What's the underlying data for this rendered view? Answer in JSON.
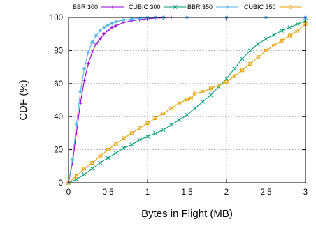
{
  "chart_data": {
    "type": "line",
    "xlabel": "Bytes in Flight (MB)",
    "ylabel": "CDF (%)",
    "xlim": [
      0,
      3
    ],
    "ylim": [
      0,
      100
    ],
    "x_ticks": [
      "0",
      "0.5",
      "1",
      "1.5",
      "2",
      "2.5",
      "3"
    ],
    "y_ticks": [
      "0",
      "20",
      "40",
      "60",
      "80",
      "100"
    ],
    "grid": true,
    "legend_position": "top",
    "series": [
      {
        "name": "BBR 300",
        "color": "#9400d3",
        "marker": "plus",
        "x": [
          0.0,
          0.05,
          0.1,
          0.15,
          0.2,
          0.25,
          0.3,
          0.35,
          0.4,
          0.45,
          0.5,
          0.55,
          0.6,
          0.65,
          0.7,
          0.8,
          0.9,
          1.0,
          1.1,
          1.2,
          1.3,
          1.5,
          2.0,
          2.5,
          3.0
        ],
        "y": [
          0,
          12,
          30,
          48,
          62,
          72,
          79,
          84,
          87,
          90,
          92,
          94,
          95,
          96,
          97,
          98,
          98.7,
          99.2,
          99.6,
          99.8,
          100,
          100,
          100,
          100,
          100
        ]
      },
      {
        "name": "CUBIC 300",
        "color": "#009e73",
        "marker": "x",
        "x": [
          0.0,
          0.1,
          0.2,
          0.3,
          0.4,
          0.5,
          0.6,
          0.7,
          0.8,
          0.9,
          1.0,
          1.1,
          1.2,
          1.3,
          1.4,
          1.5,
          1.6,
          1.7,
          1.8,
          1.9,
          2.0,
          2.1,
          2.2,
          2.3,
          2.4,
          2.5,
          2.6,
          2.7,
          2.8,
          2.9,
          3.0
        ],
        "y": [
          0,
          2,
          5,
          8.5,
          12,
          15,
          18,
          21,
          23,
          26,
          28,
          30,
          32,
          35,
          38,
          41,
          45,
          49,
          53,
          58,
          63,
          69,
          75,
          80,
          84,
          87,
          89.5,
          92,
          94,
          96,
          98
        ]
      },
      {
        "name": "BBR 350",
        "color": "#56b4e9",
        "marker": "star",
        "x": [
          0.0,
          0.05,
          0.1,
          0.15,
          0.2,
          0.25,
          0.3,
          0.35,
          0.4,
          0.45,
          0.5,
          0.55,
          0.6,
          0.7,
          0.8,
          0.9,
          1.0,
          1.1,
          1.2,
          1.5,
          2.0,
          2.5,
          3.0
        ],
        "y": [
          0,
          14,
          35,
          55,
          69,
          79,
          85,
          89,
          92,
          94,
          95.5,
          96.5,
          97.5,
          98.5,
          99,
          99.5,
          99.8,
          100,
          100,
          100,
          100,
          100,
          100
        ]
      },
      {
        "name": "CUBIC 350",
        "color": "#e69f00",
        "marker": "square",
        "x": [
          0.0,
          0.1,
          0.2,
          0.3,
          0.4,
          0.5,
          0.6,
          0.7,
          0.8,
          0.9,
          1.0,
          1.1,
          1.2,
          1.3,
          1.4,
          1.5,
          1.55,
          1.6,
          1.7,
          1.8,
          1.9,
          2.0,
          2.1,
          2.2,
          2.3,
          2.4,
          2.5,
          2.6,
          2.7,
          2.8,
          2.9,
          3.0
        ],
        "y": [
          0,
          4,
          8.5,
          12,
          16,
          20,
          23.5,
          27,
          30,
          33,
          36,
          39,
          42,
          45,
          48,
          50.5,
          51,
          54,
          55,
          57,
          59,
          61,
          64.5,
          68,
          72,
          76,
          80,
          83,
          86,
          89,
          92,
          96
        ]
      }
    ]
  }
}
